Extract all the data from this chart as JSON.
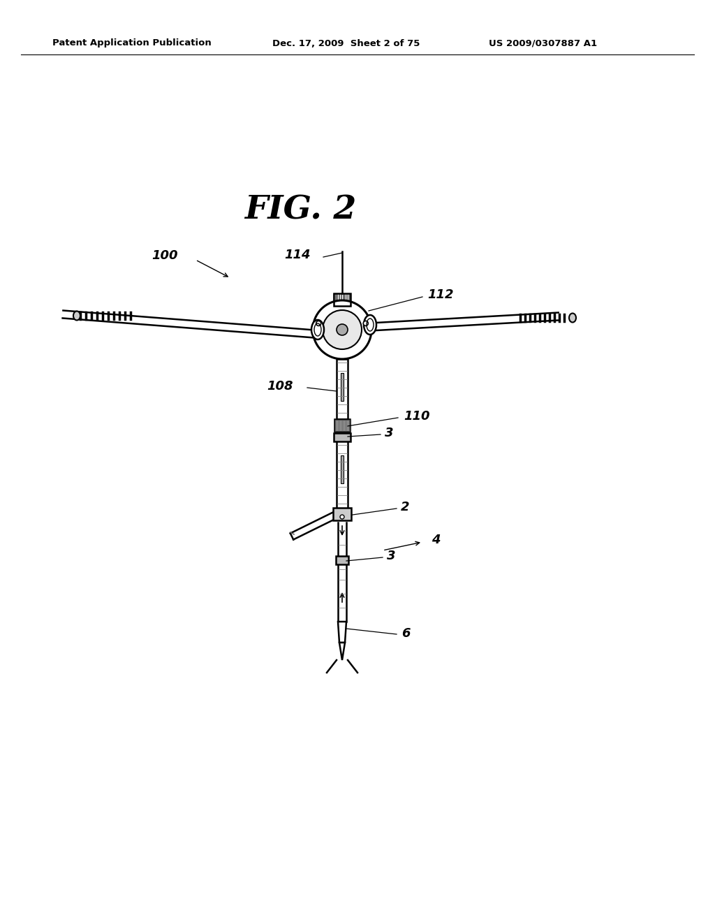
{
  "bg_color": "#ffffff",
  "header_left": "Patent Application Publication",
  "header_mid": "Dec. 17, 2009  Sheet 2 of 75",
  "header_right": "US 2009/0307887 A1",
  "fig_label": "FIG. 2",
  "label_100": "100",
  "label_114": "114",
  "label_112": "112",
  "label_108": "108",
  "label_110": "110",
  "label_3a": "3",
  "label_2": "2",
  "label_4": "4",
  "label_3b": "3",
  "label_6": "6"
}
